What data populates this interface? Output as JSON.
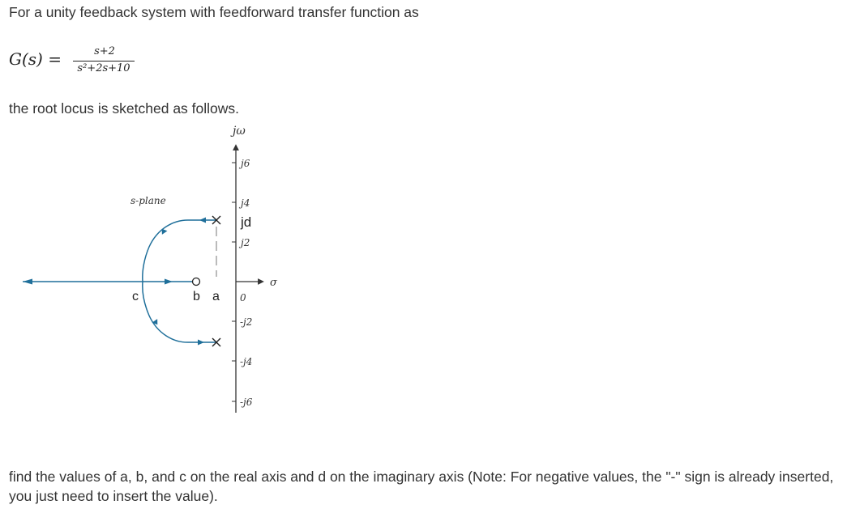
{
  "intro_text": "For a unity feedback system with feedforward transfer function as",
  "equation": {
    "lhs": "G(s) =",
    "numerator": "s+2",
    "denominator": "s²+2s+10"
  },
  "sentence2": "the root locus is sketched as follows.",
  "diagram": {
    "jw_label": "jω",
    "sigma_label": "σ",
    "plane_label": "s-plane",
    "imag_ticks": [
      "j6",
      "j4",
      "jd",
      "j2",
      "0",
      "-j2",
      "-j4",
      "-j6"
    ],
    "real_labels": [
      "c",
      "b",
      "a"
    ],
    "colors": {
      "locus": "#1f6f9a",
      "axis": "#333333"
    }
  },
  "question": "find the values of a, b, and c on the real axis and d on the imaginary axis (Note: For negative values, the \"-\" sign is already inserted, you just need to insert the value)."
}
